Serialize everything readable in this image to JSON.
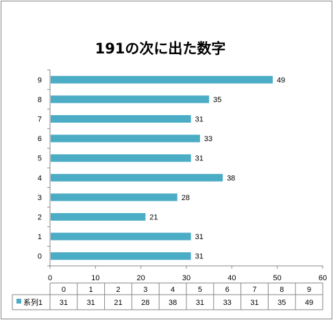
{
  "chart_data": {
    "type": "bar",
    "orientation": "horizontal",
    "title": "191の次に出た数字",
    "categories": [
      "0",
      "1",
      "2",
      "3",
      "4",
      "5",
      "6",
      "7",
      "8",
      "9"
    ],
    "series": [
      {
        "name": "系列1",
        "values": [
          31,
          31,
          21,
          28,
          38,
          31,
          33,
          31,
          35,
          49
        ]
      }
    ],
    "xlim": [
      0,
      60
    ],
    "xticks": [
      0,
      10,
      20,
      30,
      40,
      50,
      60
    ],
    "grid": false,
    "legend": "data-table-left",
    "data_table": true,
    "colors": {
      "bar": "#4bacc6",
      "axis": "#868686",
      "border": "#868686"
    }
  }
}
